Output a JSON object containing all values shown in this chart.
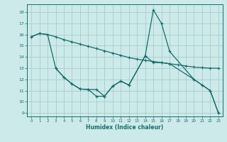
{
  "xlabel": "Humidex (Indice chaleur)",
  "bg_color": "#cceaea",
  "line_color": "#1a6b6b",
  "grid_color": "#aacccc",
  "xlim": [
    -0.5,
    23.5
  ],
  "ylim": [
    8.7,
    18.7
  ],
  "yticks": [
    9,
    10,
    11,
    12,
    13,
    14,
    15,
    16,
    17,
    18
  ],
  "xticks": [
    0,
    1,
    2,
    3,
    4,
    5,
    6,
    7,
    8,
    9,
    10,
    11,
    12,
    13,
    14,
    15,
    16,
    17,
    18,
    19,
    20,
    21,
    22,
    23
  ],
  "line1_x": [
    0,
    1,
    2,
    3,
    4,
    5,
    6,
    7,
    8,
    9,
    10,
    11,
    12,
    13,
    14,
    15,
    16,
    17,
    18,
    19,
    20,
    21,
    22,
    23
  ],
  "line1_y": [
    15.8,
    16.1,
    16.0,
    15.8,
    15.55,
    15.35,
    15.15,
    14.95,
    14.75,
    14.55,
    14.35,
    14.15,
    13.95,
    13.8,
    13.7,
    13.6,
    13.5,
    13.4,
    13.3,
    13.2,
    13.1,
    13.05,
    13.0,
    13.0
  ],
  "line2_x": [
    0,
    1,
    2,
    3,
    4,
    5,
    6,
    7,
    8,
    9,
    10,
    11,
    12,
    14,
    15,
    16,
    17,
    20,
    21,
    22,
    23
  ],
  "line2_y": [
    15.8,
    16.1,
    16.0,
    13.0,
    12.2,
    11.6,
    11.15,
    11.1,
    11.1,
    10.5,
    11.4,
    11.85,
    11.5,
    14.1,
    18.2,
    17.0,
    14.5,
    12.0,
    11.5,
    11.0,
    9.0
  ],
  "line3_x": [
    3,
    4,
    5,
    6,
    7,
    8,
    9,
    10,
    11,
    12,
    14,
    15,
    16,
    17,
    20,
    21,
    22,
    23
  ],
  "line3_y": [
    13.0,
    12.2,
    11.6,
    11.15,
    11.1,
    10.5,
    10.5,
    11.4,
    11.85,
    11.5,
    14.1,
    13.5,
    13.5,
    13.4,
    12.0,
    11.5,
    11.0,
    9.0
  ]
}
